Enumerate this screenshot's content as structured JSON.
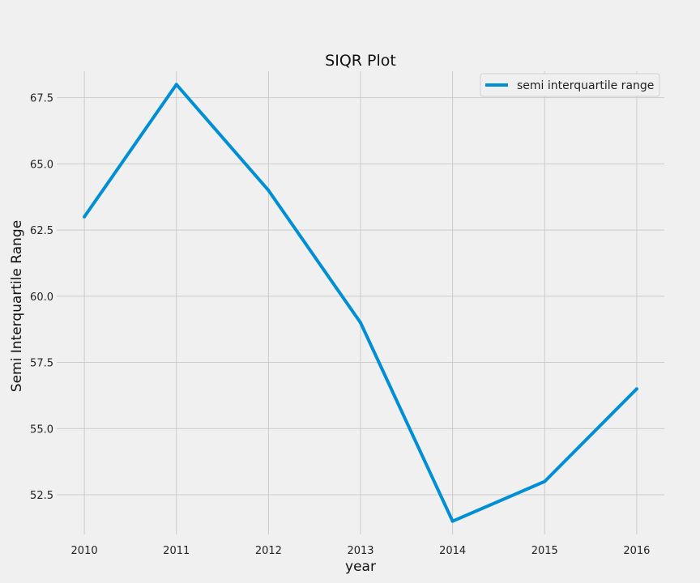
{
  "chart_data": {
    "type": "line",
    "title": "SIQR Plot",
    "xlabel": "year",
    "ylabel": "Semi Interquartile Range",
    "x": [
      2010,
      2011,
      2012,
      2013,
      2014,
      2015,
      2016
    ],
    "series": [
      {
        "name": "semi interquartile range",
        "values": [
          63.0,
          68.0,
          64.0,
          59.0,
          51.5,
          53.0,
          56.5
        ],
        "color": "#008fd5"
      }
    ],
    "x_ticks": [
      "2010",
      "2011",
      "2012",
      "2013",
      "2014",
      "2015",
      "2016"
    ],
    "y_ticks": [
      "52.5",
      "55.0",
      "57.5",
      "60.0",
      "62.5",
      "65.0",
      "67.5"
    ],
    "xlim": [
      2009.7,
      2016.3
    ],
    "ylim": [
      51.0,
      68.5
    ],
    "grid": true,
    "legend_position": "top-right",
    "colors": {
      "background": "#f0f0f0",
      "grid": "#cbcbcb",
      "line": "#008fd5"
    }
  }
}
